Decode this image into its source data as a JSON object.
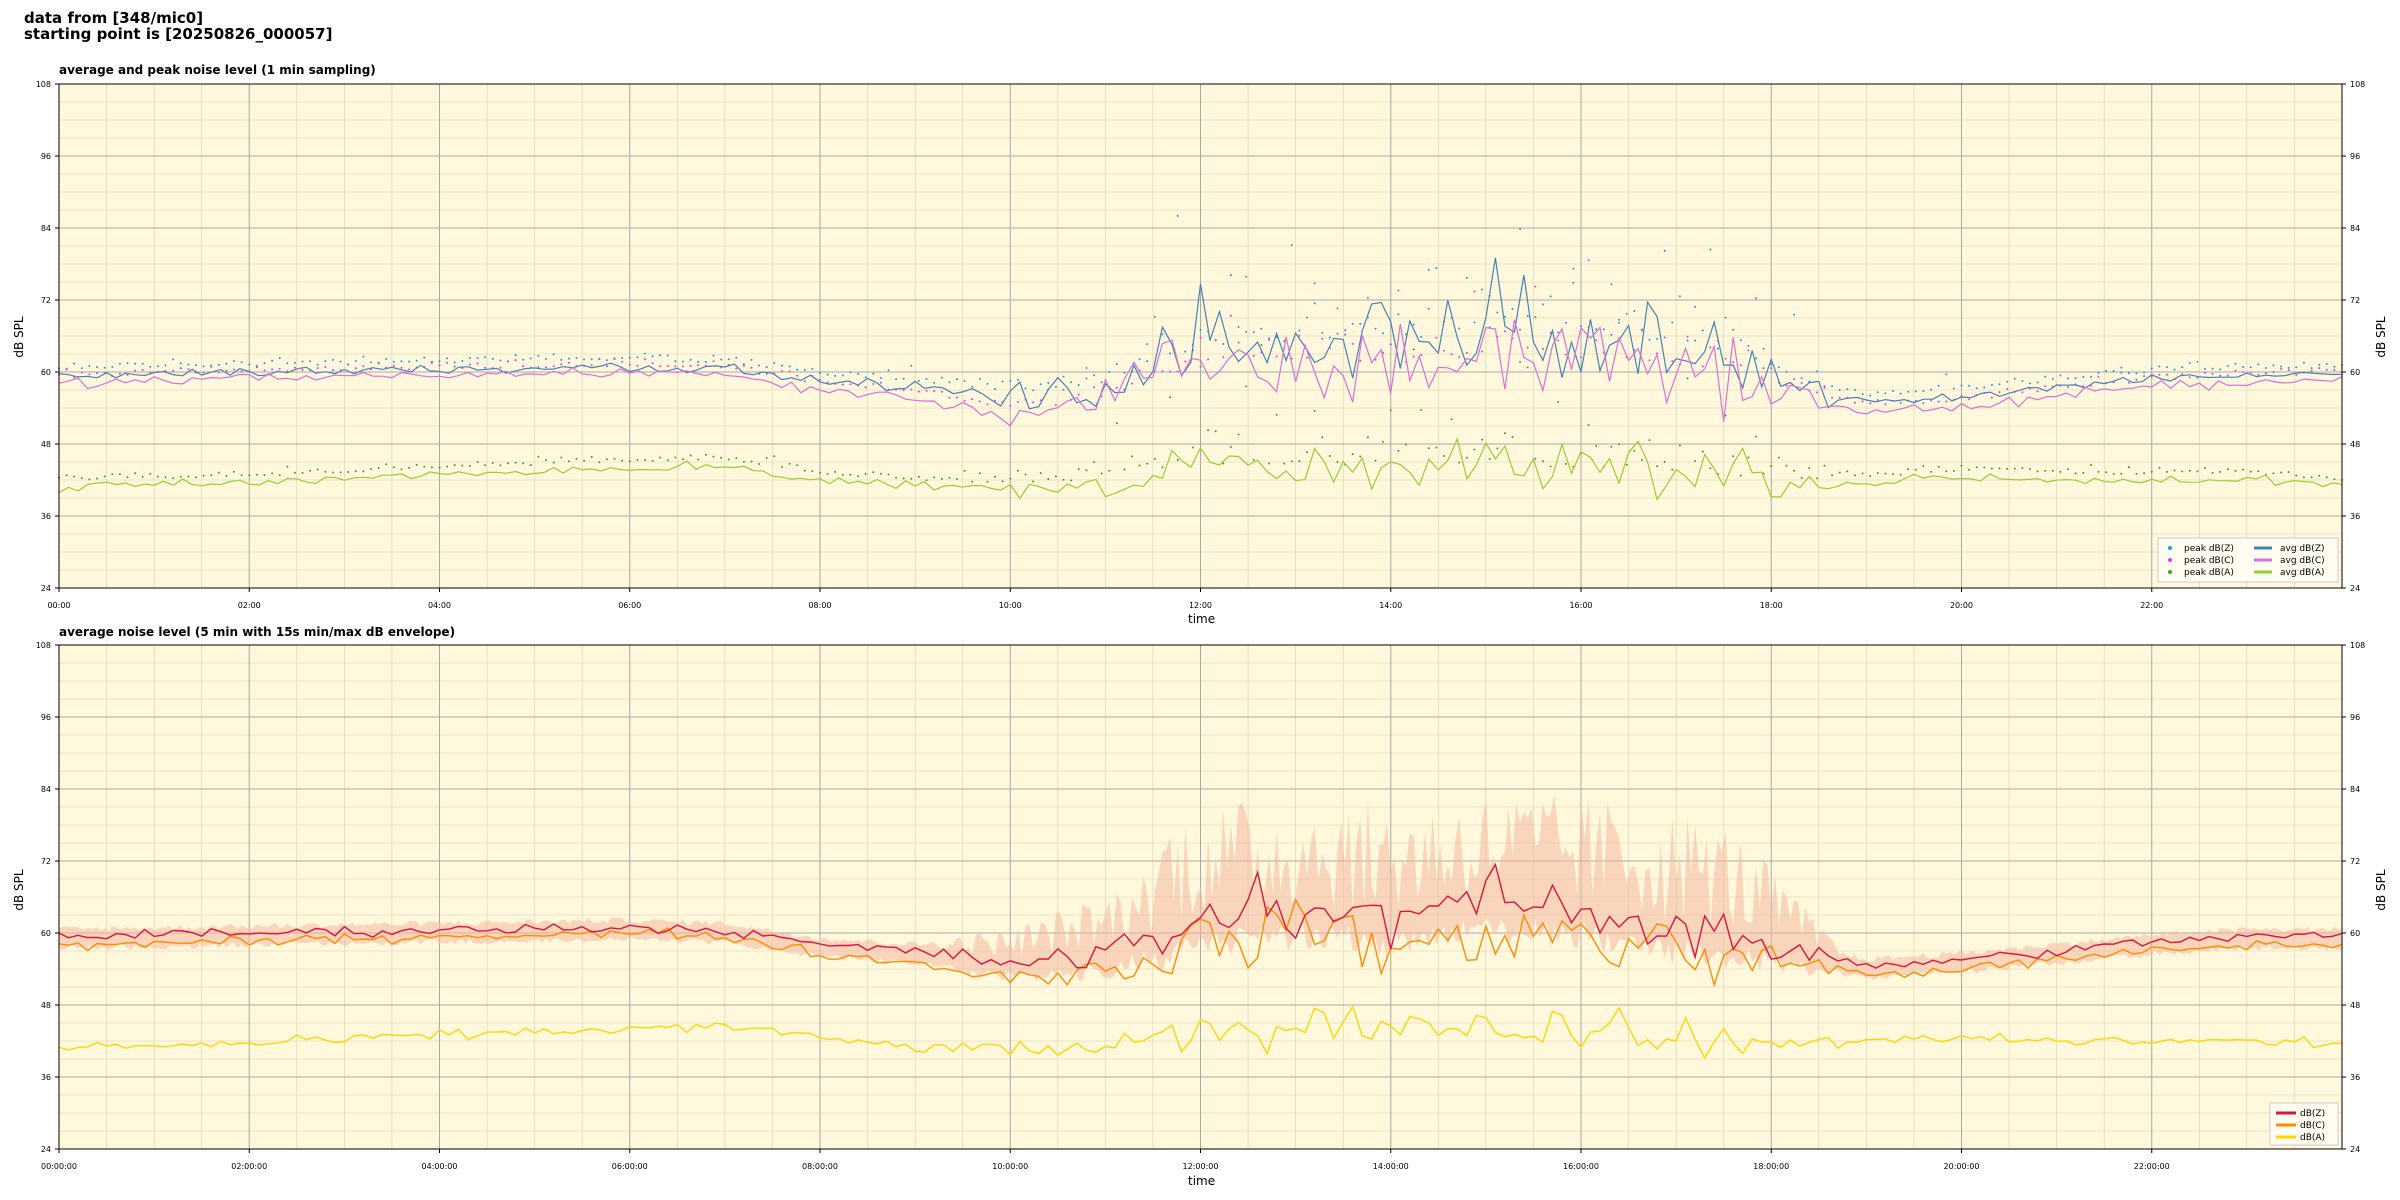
{
  "header": {
    "line1": "data from [348/mic0]",
    "line2": "starting point is [20250826_000057]"
  },
  "colors": {
    "background": "#fff8dc",
    "peak_z": "#1f9be0",
    "peak_c": "#e040e0",
    "peak_a": "#4a9a2a",
    "avg_z": "#4682b4",
    "avg_c": "#da70d6",
    "avg_a": "#9acd32",
    "dbz": "#dc143c",
    "dbc": "#ff8c00",
    "dba": "#ffd700",
    "envelope": "#f4b8a0"
  },
  "chart_data": [
    {
      "type": "line",
      "title": "average and peak noise level (1 min sampling)",
      "xlabel": "time",
      "ylabel": "dB SPL",
      "ylim": [
        24,
        108
      ],
      "yticks": [
        "24",
        "36",
        "48",
        "60",
        "72",
        "84",
        "96",
        "108"
      ],
      "xlim": [
        0,
        24
      ],
      "xtick_labels": [
        "00:00",
        "02:00",
        "04:00",
        "06:00",
        "08:00",
        "10:00",
        "12:00",
        "14:00",
        "16:00",
        "18:00",
        "20:00",
        "22:00"
      ],
      "grid": true,
      "legend_position": "bottom-right",
      "legend": [
        "peak dB(Z)",
        "peak dB(C)",
        "peak dB(A)",
        "avg dB(Z)",
        "avg dB(C)",
        "avg dB(A)"
      ],
      "series": [
        {
          "name": "avg dB(Z)",
          "x": [
            0,
            2,
            4,
            6,
            7,
            8,
            9,
            10,
            11,
            12,
            13,
            14,
            15,
            16,
            17,
            18,
            18.5,
            19,
            20,
            21,
            22,
            23,
            24
          ],
          "y": [
            59.5,
            60.0,
            60.5,
            61.0,
            60.5,
            58.5,
            57.5,
            55.5,
            57.0,
            63.0,
            64.0,
            63.5,
            66.0,
            65.0,
            63.5,
            60.0,
            56.5,
            55.0,
            56.0,
            57.5,
            59.0,
            59.5,
            59.5
          ]
        },
        {
          "name": "avg dB(C)",
          "x": [
            0,
            2,
            4,
            6,
            7,
            8,
            9,
            10,
            11,
            12,
            13,
            14,
            15,
            16,
            17,
            18,
            18.5,
            19,
            20,
            21,
            22,
            23,
            24
          ],
          "y": [
            58.0,
            59.0,
            59.5,
            60.0,
            59.5,
            57.0,
            55.5,
            53.0,
            54.0,
            60.0,
            61.0,
            60.0,
            62.0,
            61.0,
            60.0,
            57.0,
            55.0,
            53.5,
            54.0,
            56.0,
            57.5,
            58.5,
            58.5
          ]
        },
        {
          "name": "avg dB(A)",
          "x": [
            0,
            2,
            4,
            6,
            7,
            8,
            9,
            10,
            11,
            12,
            13,
            14,
            15,
            16,
            17,
            18,
            19,
            20,
            21,
            22,
            23,
            24
          ],
          "y": [
            41.0,
            41.5,
            43.0,
            44.0,
            44.5,
            42.0,
            41.0,
            40.5,
            41.0,
            43.5,
            43.0,
            44.0,
            43.5,
            43.0,
            42.5,
            41.0,
            41.5,
            42.5,
            42.0,
            42.0,
            42.0,
            41.0
          ]
        }
      ]
    },
    {
      "type": "line",
      "title": "average noise level (5 min with 15s min/max dB envelope)",
      "xlabel": "time",
      "ylabel": "dB SPL",
      "ylim": [
        24,
        108
      ],
      "yticks": [
        "24",
        "36",
        "48",
        "60",
        "72",
        "84",
        "96",
        "108"
      ],
      "xlim": [
        0,
        24
      ],
      "xtick_labels": [
        "00:00:00",
        "02:00:00",
        "04:00:00",
        "06:00:00",
        "08:00:00",
        "10:00:00",
        "12:00:00",
        "14:00:00",
        "16:00:00",
        "18:00:00",
        "20:00:00",
        "22:00:00"
      ],
      "grid": true,
      "legend_position": "bottom-right",
      "legend": [
        "dB(Z)",
        "dB(C)",
        "dB(A)"
      ],
      "series": [
        {
          "name": "dB(Z)",
          "x": [
            0,
            2,
            4,
            6,
            7,
            8,
            9,
            10,
            11,
            12,
            13,
            14,
            15,
            16,
            17,
            18,
            18.5,
            19,
            20,
            21,
            22,
            23,
            24
          ],
          "y": [
            59.5,
            60.0,
            60.5,
            61.0,
            60.5,
            58.0,
            57.0,
            55.0,
            56.5,
            62.0,
            63.5,
            62.0,
            64.5,
            63.5,
            61.0,
            58.5,
            56.0,
            54.5,
            55.5,
            57.0,
            58.5,
            59.5,
            59.5
          ]
        },
        {
          "name": "dB(C)",
          "x": [
            0,
            2,
            4,
            6,
            7,
            8,
            9,
            10,
            11,
            12,
            13,
            14,
            15,
            16,
            17,
            18,
            18.5,
            19,
            20,
            21,
            22,
            23,
            24
          ],
          "y": [
            58.0,
            58.5,
            59.5,
            60.0,
            59.5,
            56.5,
            55.0,
            52.5,
            53.5,
            58.5,
            60.0,
            57.5,
            59.0,
            59.0,
            57.0,
            55.5,
            54.5,
            53.0,
            54.0,
            55.5,
            57.0,
            58.0,
            58.0
          ]
        },
        {
          "name": "dB(A)",
          "x": [
            0,
            2,
            4,
            6,
            7,
            8,
            9,
            10,
            11,
            12,
            13,
            14,
            15,
            16,
            17,
            18,
            19,
            20,
            21,
            22,
            23,
            24
          ],
          "y": [
            41.0,
            41.5,
            43.0,
            44.0,
            44.5,
            42.5,
            41.0,
            40.5,
            41.0,
            43.5,
            43.0,
            44.5,
            44.0,
            43.0,
            42.5,
            41.0,
            42.0,
            42.5,
            42.0,
            42.0,
            42.0,
            41.5
          ]
        }
      ]
    }
  ]
}
